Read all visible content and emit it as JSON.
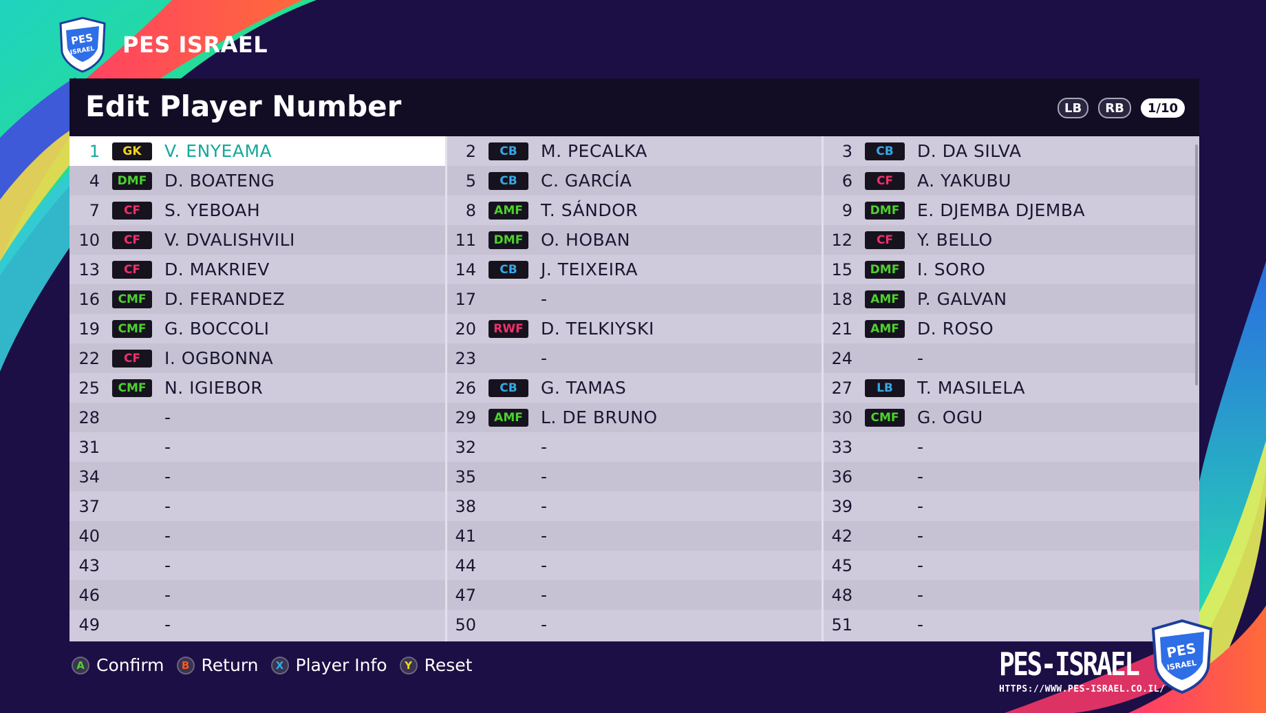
{
  "brand": {
    "title": "PES ISRAEL",
    "logo_text": "PES ISRAEL"
  },
  "panel": {
    "title": "Edit Player Number",
    "buttons": {
      "lb": "LB",
      "rb": "RB",
      "page": "1/10"
    }
  },
  "position_colors": {
    "GK": "#f2d421",
    "CB": "#35a9e6",
    "LB": "#35a9e6",
    "DMF": "#4dd12d",
    "CMF": "#4dd12d",
    "AMF": "#4dd12d",
    "CF": "#f0306a",
    "RWF": "#f0306a"
  },
  "selected_color": "#17a79b",
  "roster": [
    {
      "num": "1",
      "pos": "GK",
      "name": "V. ENYEAMA",
      "selected": true
    },
    {
      "num": "2",
      "pos": "CB",
      "name": "M. PECALKA"
    },
    {
      "num": "3",
      "pos": "CB",
      "name": "D. DA SILVA"
    },
    {
      "num": "4",
      "pos": "DMF",
      "name": "D. BOATENG"
    },
    {
      "num": "5",
      "pos": "CB",
      "name": "C. GARCÍA"
    },
    {
      "num": "6",
      "pos": "CF",
      "name": "A. YAKUBU"
    },
    {
      "num": "7",
      "pos": "CF",
      "name": "S. YEBOAH"
    },
    {
      "num": "8",
      "pos": "AMF",
      "name": "T. SÁNDOR"
    },
    {
      "num": "9",
      "pos": "DMF",
      "name": "E. DJEMBA DJEMBA"
    },
    {
      "num": "10",
      "pos": "CF",
      "name": "V. DVALISHVILI"
    },
    {
      "num": "11",
      "pos": "DMF",
      "name": "O. HOBAN"
    },
    {
      "num": "12",
      "pos": "CF",
      "name": "Y. BELLO"
    },
    {
      "num": "13",
      "pos": "CF",
      "name": "D. MAKRIEV"
    },
    {
      "num": "14",
      "pos": "CB",
      "name": "J. TEIXEIRA"
    },
    {
      "num": "15",
      "pos": "DMF",
      "name": "I. SORO"
    },
    {
      "num": "16",
      "pos": "CMF",
      "name": "D. FERANDEZ"
    },
    {
      "num": "17",
      "pos": "",
      "name": "-"
    },
    {
      "num": "18",
      "pos": "AMF",
      "name": "P. GALVAN"
    },
    {
      "num": "19",
      "pos": "CMF",
      "name": "G. BOCCOLI"
    },
    {
      "num": "20",
      "pos": "RWF",
      "name": "D. TELKIYSKI"
    },
    {
      "num": "21",
      "pos": "AMF",
      "name": "D. ROSO"
    },
    {
      "num": "22",
      "pos": "CF",
      "name": "I. OGBONNA"
    },
    {
      "num": "23",
      "pos": "",
      "name": "-"
    },
    {
      "num": "24",
      "pos": "",
      "name": "-"
    },
    {
      "num": "25",
      "pos": "CMF",
      "name": "N. IGIEBOR"
    },
    {
      "num": "26",
      "pos": "CB",
      "name": "G. TAMAS"
    },
    {
      "num": "27",
      "pos": "LB",
      "name": "T. MASILELA"
    },
    {
      "num": "28",
      "pos": "",
      "name": "-"
    },
    {
      "num": "29",
      "pos": "AMF",
      "name": "L. DE BRUNO"
    },
    {
      "num": "30",
      "pos": "CMF",
      "name": "G. OGU"
    },
    {
      "num": "31",
      "pos": "",
      "name": "-"
    },
    {
      "num": "32",
      "pos": "",
      "name": "-"
    },
    {
      "num": "33",
      "pos": "",
      "name": "-"
    },
    {
      "num": "34",
      "pos": "",
      "name": "-"
    },
    {
      "num": "35",
      "pos": "",
      "name": "-"
    },
    {
      "num": "36",
      "pos": "",
      "name": "-"
    },
    {
      "num": "37",
      "pos": "",
      "name": "-"
    },
    {
      "num": "38",
      "pos": "",
      "name": "-"
    },
    {
      "num": "39",
      "pos": "",
      "name": "-"
    },
    {
      "num": "40",
      "pos": "",
      "name": "-"
    },
    {
      "num": "41",
      "pos": "",
      "name": "-"
    },
    {
      "num": "42",
      "pos": "",
      "name": "-"
    },
    {
      "num": "43",
      "pos": "",
      "name": "-"
    },
    {
      "num": "44",
      "pos": "",
      "name": "-"
    },
    {
      "num": "45",
      "pos": "",
      "name": "-"
    },
    {
      "num": "46",
      "pos": "",
      "name": "-"
    },
    {
      "num": "47",
      "pos": "",
      "name": "-"
    },
    {
      "num": "48",
      "pos": "",
      "name": "-"
    },
    {
      "num": "49",
      "pos": "",
      "name": "-"
    },
    {
      "num": "50",
      "pos": "",
      "name": "-"
    },
    {
      "num": "51",
      "pos": "",
      "name": "-"
    }
  ],
  "footer": [
    {
      "key": "A",
      "label": "Confirm",
      "color": "#4dd12d",
      "name": "confirm"
    },
    {
      "key": "B",
      "label": "Return",
      "color": "#f05a22",
      "name": "return"
    },
    {
      "key": "X",
      "label": "Player Info",
      "color": "#35a9e6",
      "name": "player-info"
    },
    {
      "key": "Y",
      "label": "Reset",
      "color": "#f2d421",
      "name": "reset"
    }
  ],
  "watermark": {
    "text": "PES-ISRAEL",
    "url": "HTTPS://WWW.PES-ISRAEL.CO.IL/"
  }
}
